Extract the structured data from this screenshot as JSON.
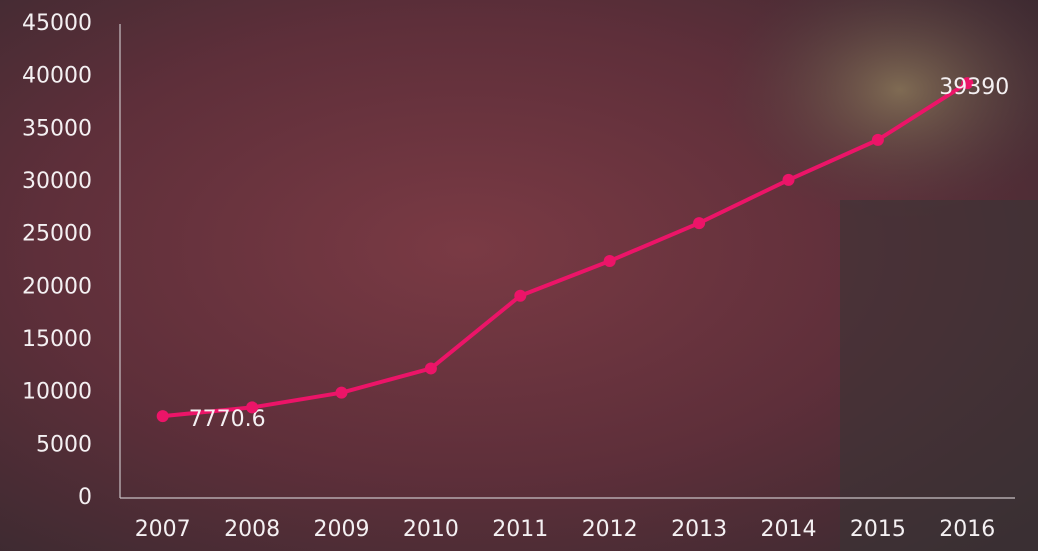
{
  "chart_data": {
    "type": "line",
    "categories": [
      "2007",
      "2008",
      "2009",
      "2010",
      "2011",
      "2012",
      "2013",
      "2014",
      "2015",
      "2016"
    ],
    "series": [
      {
        "color": "#ec1468",
        "values": [
          7770.6,
          8600,
          10000,
          12300,
          19200,
          22500,
          26100,
          30200,
          34000,
          39390
        ],
        "value_labels": [
          "7770.6",
          null,
          null,
          null,
          null,
          null,
          null,
          null,
          null,
          "39390"
        ]
      }
    ],
    "ylim": [
      0,
      45000
    ],
    "yticks": [
      0,
      5000,
      10000,
      15000,
      20000,
      25000,
      30000,
      35000,
      40000,
      45000
    ],
    "grid": false
  }
}
